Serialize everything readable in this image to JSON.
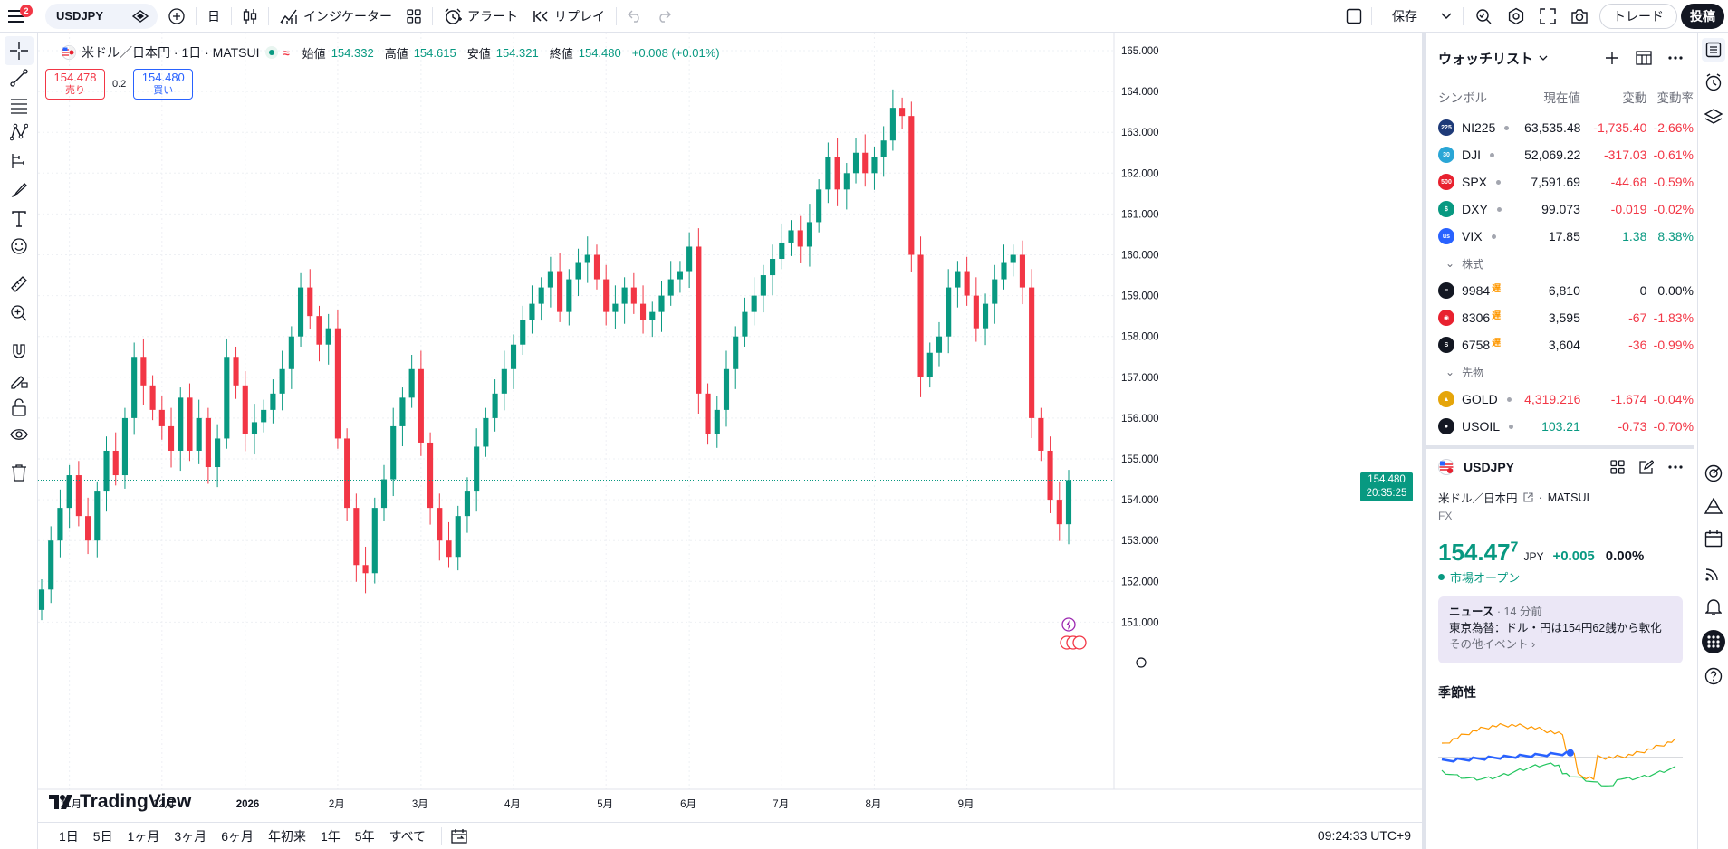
{
  "topbar": {
    "notification_count": "2",
    "symbol": "USDJPY",
    "interval": "日",
    "indicators_label": "インジケーター",
    "alert_label": "アラート",
    "replay_label": "リプレイ",
    "save_label": "保存",
    "trade_label": "トレード",
    "publish_label": "投稿"
  },
  "legend": {
    "title": "米ドル／日本円 · 1日 · MATSUI",
    "open_label": "始値",
    "open": "154.332",
    "high_label": "高値",
    "high": "154.615",
    "low_label": "安値",
    "low": "154.321",
    "close_label": "終値",
    "close": "154.480",
    "change": "+0.008 (+0.01%)"
  },
  "buysell": {
    "sell_price": "154.478",
    "sell_label": "売り",
    "spread": "0.2",
    "buy_price": "154.480",
    "buy_label": "買い"
  },
  "chart_data": {
    "type": "candlestick",
    "symbol": "USDJPY",
    "ylim": [
      150.5,
      165.3
    ],
    "y_ticks": [
      "165.000",
      "164.000",
      "163.000",
      "162.000",
      "161.000",
      "160.000",
      "159.000",
      "158.000",
      "157.000",
      "156.000",
      "155.000",
      "154.000",
      "153.000",
      "152.000",
      "151.000"
    ],
    "x_ticks": [
      "11月",
      "12月",
      "2026",
      "2月",
      "3月",
      "4月",
      "5月",
      "6月",
      "7月",
      "8月",
      "9月"
    ],
    "last_price": "154.480",
    "countdown": "20:35:25",
    "colors": {
      "up": "#089981",
      "down": "#f23645"
    },
    "approx_closes": [
      151.8,
      153.0,
      153.8,
      154.6,
      153.6,
      153.0,
      154.2,
      155.2,
      154.6,
      156.0,
      157.5,
      156.8,
      156.2,
      155.8,
      155.2,
      156.5,
      155.2,
      156.0,
      154.8,
      155.5,
      157.5,
      156.8,
      155.6,
      155.9,
      156.2,
      156.6,
      157.2,
      158.0,
      159.2,
      158.5,
      157.8,
      158.2,
      155.5,
      153.8,
      152.4,
      152.2,
      153.8,
      154.5,
      155.8,
      156.5,
      157.2,
      155.4,
      153.8,
      153.0,
      152.6,
      153.6,
      154.2,
      155.3,
      156.0,
      156.6,
      157.2,
      157.8,
      158.4,
      158.8,
      159.2,
      159.6,
      158.6,
      159.4,
      159.8,
      160.0,
      159.4,
      158.6,
      158.8,
      159.2,
      158.8,
      158.4,
      158.6,
      159.0,
      159.4,
      159.6,
      160.2,
      156.6,
      155.6,
      156.2,
      157.2,
      158.0,
      158.6,
      159.0,
      159.5,
      159.9,
      160.3,
      160.6,
      160.2,
      160.8,
      161.6,
      162.4,
      161.6,
      162.0,
      162.5,
      162.0,
      162.4,
      162.8,
      163.6,
      163.4,
      160.0,
      157.0,
      157.6,
      158.0,
      159.2,
      159.6,
      159.0,
      158.2,
      158.8,
      159.4,
      159.8,
      160.0,
      159.2,
      156.0,
      155.2,
      154.0,
      153.4,
      154.48
    ]
  },
  "price_tag": {
    "price": "154.480",
    "countdown": "20:35:25"
  },
  "logo_text": "TradingView",
  "range_bar": {
    "ranges": [
      "1日",
      "5日",
      "1ヶ月",
      "3ヶ月",
      "6ヶ月",
      "年初来",
      "1年",
      "5年",
      "すべて"
    ],
    "clock": "09:24:33 UTC+9"
  },
  "watchlist": {
    "title": "ウォッチリスト",
    "cols": {
      "symbol": "シンボル",
      "last": "現在値",
      "change": "変動",
      "change_pct": "変動率"
    },
    "rows": [
      {
        "sym": "NI225",
        "icon": "225",
        "color": "#1e3a78",
        "last": "63,535.48",
        "chg": "-1,735.40",
        "pct": "-2.66%",
        "dir": "neg"
      },
      {
        "sym": "DJI",
        "icon": "30",
        "color": "#2aa6d6",
        "last": "52,069.22",
        "chg": "-317.03",
        "pct": "-0.61%",
        "dir": "neg"
      },
      {
        "sym": "SPX",
        "icon": "500",
        "color": "#e8212f",
        "last": "7,591.69",
        "chg": "-44.68",
        "pct": "-0.59%",
        "dir": "neg"
      },
      {
        "sym": "DXY",
        "icon": "$",
        "color": "#089981",
        "last": "99.073",
        "chg": "-0.019",
        "pct": "-0.02%",
        "dir": "neg"
      },
      {
        "sym": "VIX",
        "icon": "us",
        "color": "#2962ff",
        "last": "17.85",
        "chg": "1.38",
        "pct": "8.38%",
        "dir": "pos"
      }
    ],
    "section_stocks": "株式",
    "stocks": [
      {
        "sym": "9984",
        "icon": "≡",
        "color": "#131722",
        "last": "6,810",
        "chg": "0",
        "pct": "0.00%",
        "dir": "zero"
      },
      {
        "sym": "8306",
        "icon": "◉",
        "color": "#e8212f",
        "last": "3,595",
        "chg": "-67",
        "pct": "-1.83%",
        "dir": "neg"
      },
      {
        "sym": "6758",
        "icon": "S",
        "color": "#131722",
        "last": "3,604",
        "chg": "-36",
        "pct": "-0.99%",
        "dir": "neg"
      }
    ],
    "delayed_mark": "遅",
    "section_futures": "先物",
    "futures": [
      {
        "sym": "GOLD",
        "icon": "▲",
        "color": "#e5a50a",
        "last": "4,319.216",
        "chg": "-1.674",
        "pct": "-0.04%",
        "dir": "neg",
        "lastdir": "neg"
      },
      {
        "sym": "USOIL",
        "icon": "●",
        "color": "#131722",
        "last": "103.21",
        "chg": "-0.73",
        "pct": "-0.70%",
        "dir": "neg",
        "lastdir": "pos"
      }
    ]
  },
  "details": {
    "symbol": "USDJPY",
    "name": "米ドル／日本円",
    "exchange": "MATSUI",
    "category": "FX",
    "price_main": "154.47",
    "price_sup": "7",
    "currency": "JPY",
    "change": "+0.005",
    "change_pct": "0.00%",
    "market_status": "市場オープン",
    "news_label": "ニュース",
    "news_time": "· 14 分前",
    "news_headline": "東京為替：ドル・円は154円62銭から軟化",
    "news_more": "その他イベント ›",
    "seasonality_title": "季節性"
  }
}
